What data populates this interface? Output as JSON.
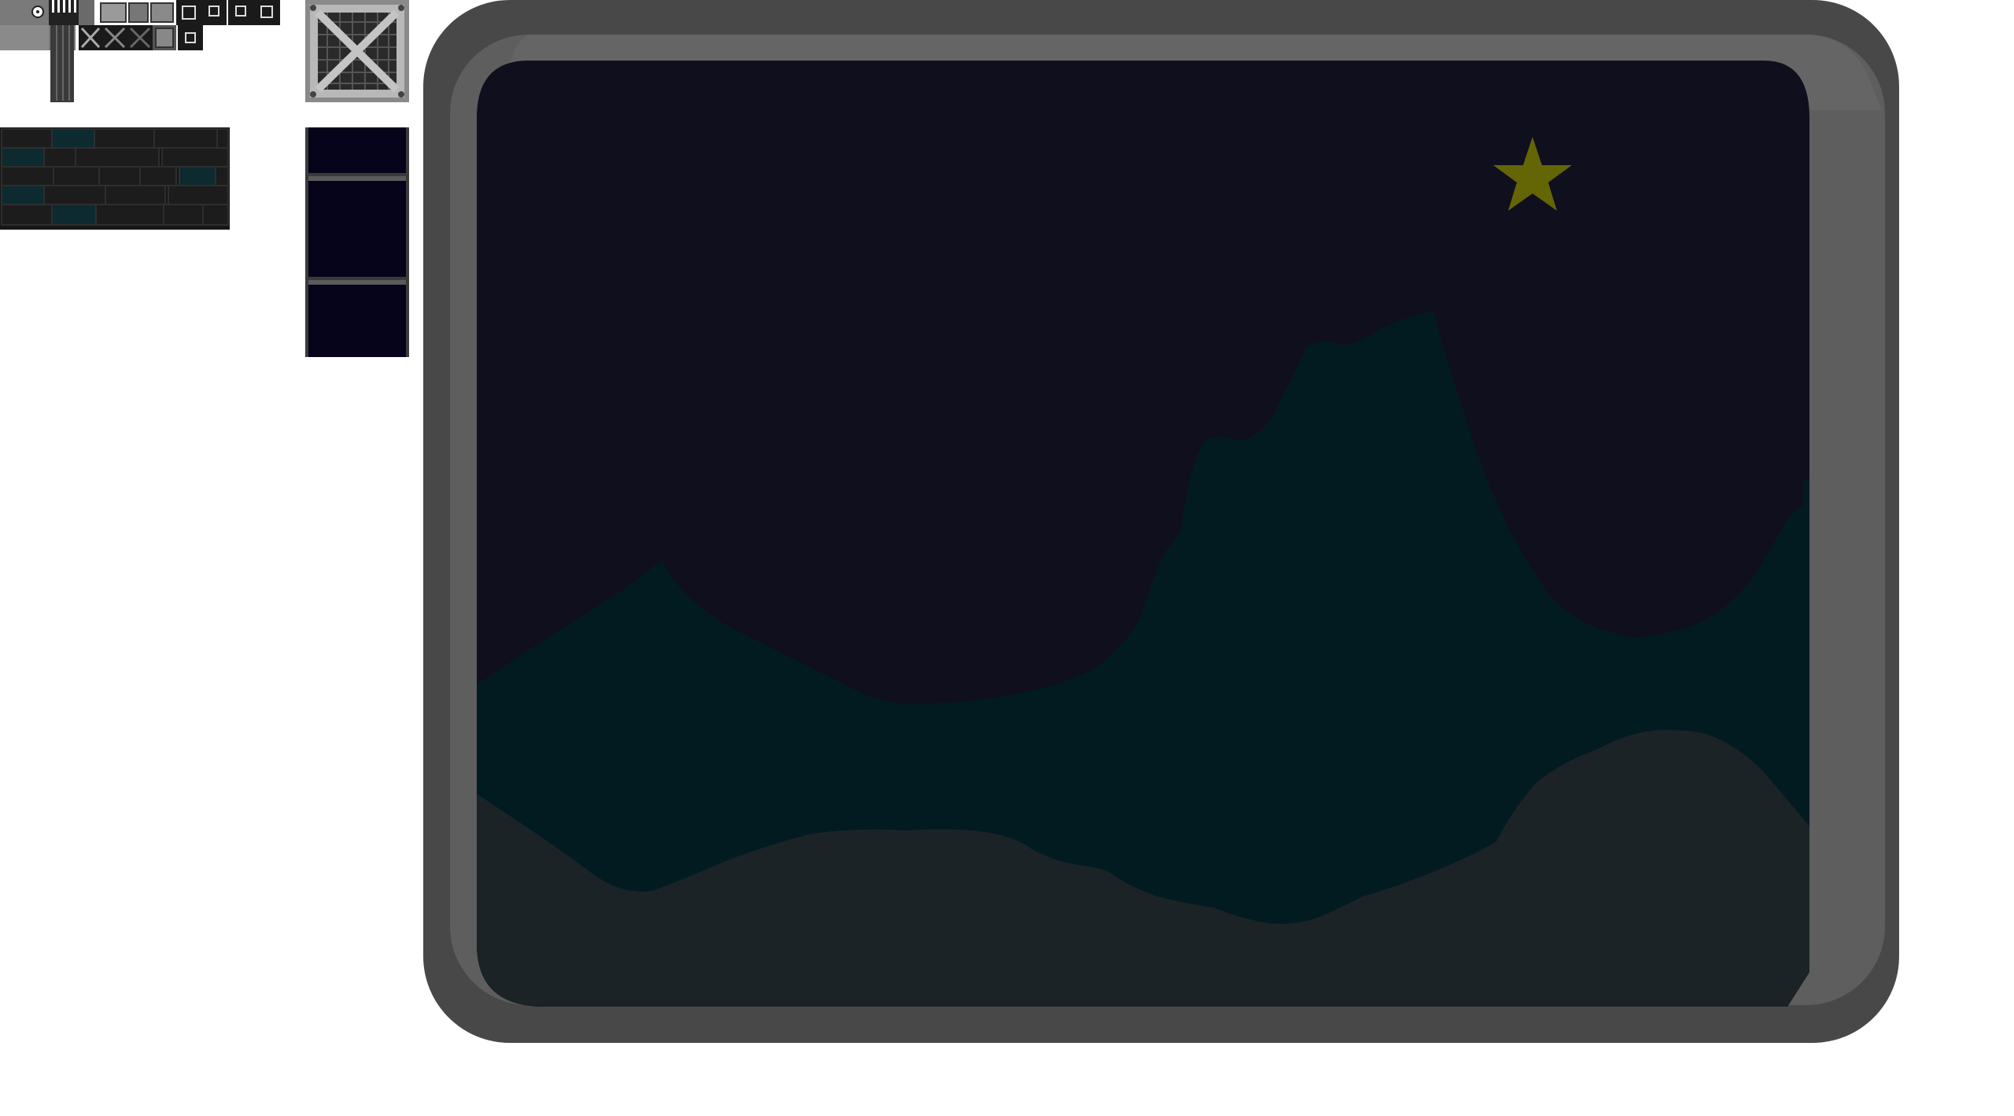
{
  "palette": {
    "background": "#ffffff",
    "frame_outer": "#484848",
    "frame_inner": "#5e5e5e",
    "frame_light": "#656565",
    "sky": "#100f1e",
    "hills_far": "#021b21",
    "hills_near": "#1b2326",
    "star": "#646505",
    "sheet_dark": "#161616",
    "sheet_mid": "#2a2a2a",
    "sheet_light": "#9a9a9a",
    "brick_teal": "#0c2a2f",
    "column_fill": "#06041a",
    "crate_light": "#b8b8b8",
    "crate_dark": "#5a5a5a"
  },
  "assets": {
    "tile_sheet": {
      "icon": "ui-tiles-sprite-sheet"
    },
    "brick_sheet": {
      "icon": "brick-wall-sprite-sheet"
    },
    "crate_sprite": {
      "icon": "metal-crate-icon"
    },
    "column_sprite": {
      "icon": "window-column-sprite"
    }
  },
  "scene": {
    "icon": "night-window-scene",
    "star": {
      "icon": "star-icon"
    }
  }
}
